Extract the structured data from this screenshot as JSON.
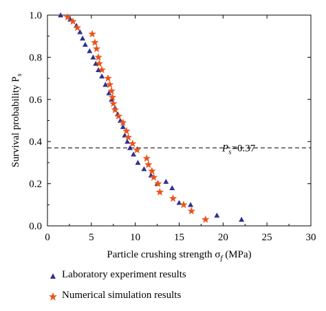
{
  "chart_data": {
    "type": "scatter",
    "xlabel": "Particle crushing strength σ",
    "xlabel_sub": "f",
    "xlabel_unit": " (MPa)",
    "ylabel": "Survival probability P",
    "ylabel_sub": "s",
    "xlim": [
      0,
      30
    ],
    "ylim": [
      0,
      1.0
    ],
    "xticks": [
      "0",
      "5",
      "10",
      "15",
      "20",
      "25",
      "30"
    ],
    "yticks": [
      "0.0",
      "0.2",
      "0.4",
      "0.6",
      "0.8",
      "1.0"
    ],
    "grid": false,
    "reference_line": {
      "y": 0.37,
      "label_main": "P",
      "label_sub": "s",
      "label_tail": "=0.37"
    },
    "series": [
      {
        "name": "Laboratory experiment results",
        "marker": "triangle",
        "color": "#2e3192",
        "points": [
          [
            1.5,
            1.0
          ],
          [
            2.6,
            0.98
          ],
          [
            3.3,
            0.95
          ],
          [
            3.7,
            0.92
          ],
          [
            4.0,
            0.89
          ],
          [
            4.3,
            0.86
          ],
          [
            4.8,
            0.83
          ],
          [
            5.2,
            0.8
          ],
          [
            5.5,
            0.77
          ],
          [
            5.8,
            0.74
          ],
          [
            6.2,
            0.71
          ],
          [
            6.6,
            0.67
          ],
          [
            7.0,
            0.63
          ],
          [
            7.3,
            0.6
          ],
          [
            7.7,
            0.56
          ],
          [
            8.0,
            0.53
          ],
          [
            8.3,
            0.5
          ],
          [
            8.6,
            0.47
          ],
          [
            8.8,
            0.43
          ],
          [
            9.1,
            0.4
          ],
          [
            9.4,
            0.37
          ],
          [
            9.8,
            0.34
          ],
          [
            10.3,
            0.3
          ],
          [
            11.0,
            0.27
          ],
          [
            11.8,
            0.24
          ],
          [
            12.5,
            0.2
          ],
          [
            13.5,
            0.21
          ],
          [
            14.2,
            0.18
          ],
          [
            15.0,
            0.11
          ],
          [
            16.3,
            0.1
          ],
          [
            19.3,
            0.05
          ],
          [
            22.1,
            0.03
          ]
        ]
      },
      {
        "name": "Numerical simulation results",
        "marker": "star",
        "color": "#e8541f",
        "points": [
          [
            2.3,
            0.99
          ],
          [
            2.9,
            0.97
          ],
          [
            3.4,
            0.94
          ],
          [
            5.1,
            0.91
          ],
          [
            5.4,
            0.87
          ],
          [
            5.6,
            0.84
          ],
          [
            5.8,
            0.8
          ],
          [
            5.9,
            0.77
          ],
          [
            6.2,
            0.74
          ],
          [
            6.9,
            0.7
          ],
          [
            7.1,
            0.67
          ],
          [
            7.3,
            0.64
          ],
          [
            7.4,
            0.61
          ],
          [
            7.5,
            0.58
          ],
          [
            7.7,
            0.55
          ],
          [
            8.1,
            0.52
          ],
          [
            8.6,
            0.49
          ],
          [
            9.0,
            0.45
          ],
          [
            9.2,
            0.42
          ],
          [
            9.7,
            0.39
          ],
          [
            10.2,
            0.36
          ],
          [
            11.3,
            0.32
          ],
          [
            11.5,
            0.29
          ],
          [
            11.9,
            0.26
          ],
          [
            12.1,
            0.23
          ],
          [
            12.6,
            0.2
          ],
          [
            12.8,
            0.16
          ],
          [
            14.3,
            0.13
          ],
          [
            15.5,
            0.1
          ],
          [
            16.4,
            0.07
          ],
          [
            18.0,
            0.03
          ]
        ]
      }
    ],
    "legend_placement": "bottom-left"
  }
}
